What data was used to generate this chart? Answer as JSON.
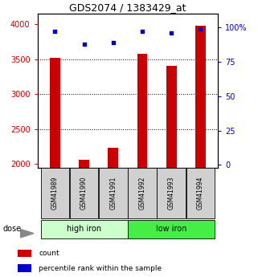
{
  "title": "GDS2074 / 1383429_at",
  "samples": [
    "GSM41989",
    "GSM41990",
    "GSM41991",
    "GSM41992",
    "GSM41993",
    "GSM41994"
  ],
  "counts": [
    3520,
    2060,
    2230,
    3580,
    3410,
    3980
  ],
  "percentiles": [
    97,
    88,
    89,
    97,
    96,
    99
  ],
  "ylim_left": [
    1950,
    4150
  ],
  "ylim_right": [
    -2,
    110
  ],
  "yticks_left": [
    2000,
    2500,
    3000,
    3500,
    4000
  ],
  "yticks_right": [
    0,
    25,
    50,
    75,
    100
  ],
  "bar_color": "#cc0000",
  "dot_color": "#0000cc",
  "bar_width": 0.35,
  "left_tick_color": "#cc0000",
  "right_tick_color": "#0000cc",
  "group_colors": [
    "#ccffcc",
    "#44ee44"
  ],
  "group_labels": [
    "high iron",
    "low iron"
  ],
  "group_ranges": [
    [
      0,
      2
    ],
    [
      3,
      5
    ]
  ],
  "sample_box_color": "#d0d0d0"
}
